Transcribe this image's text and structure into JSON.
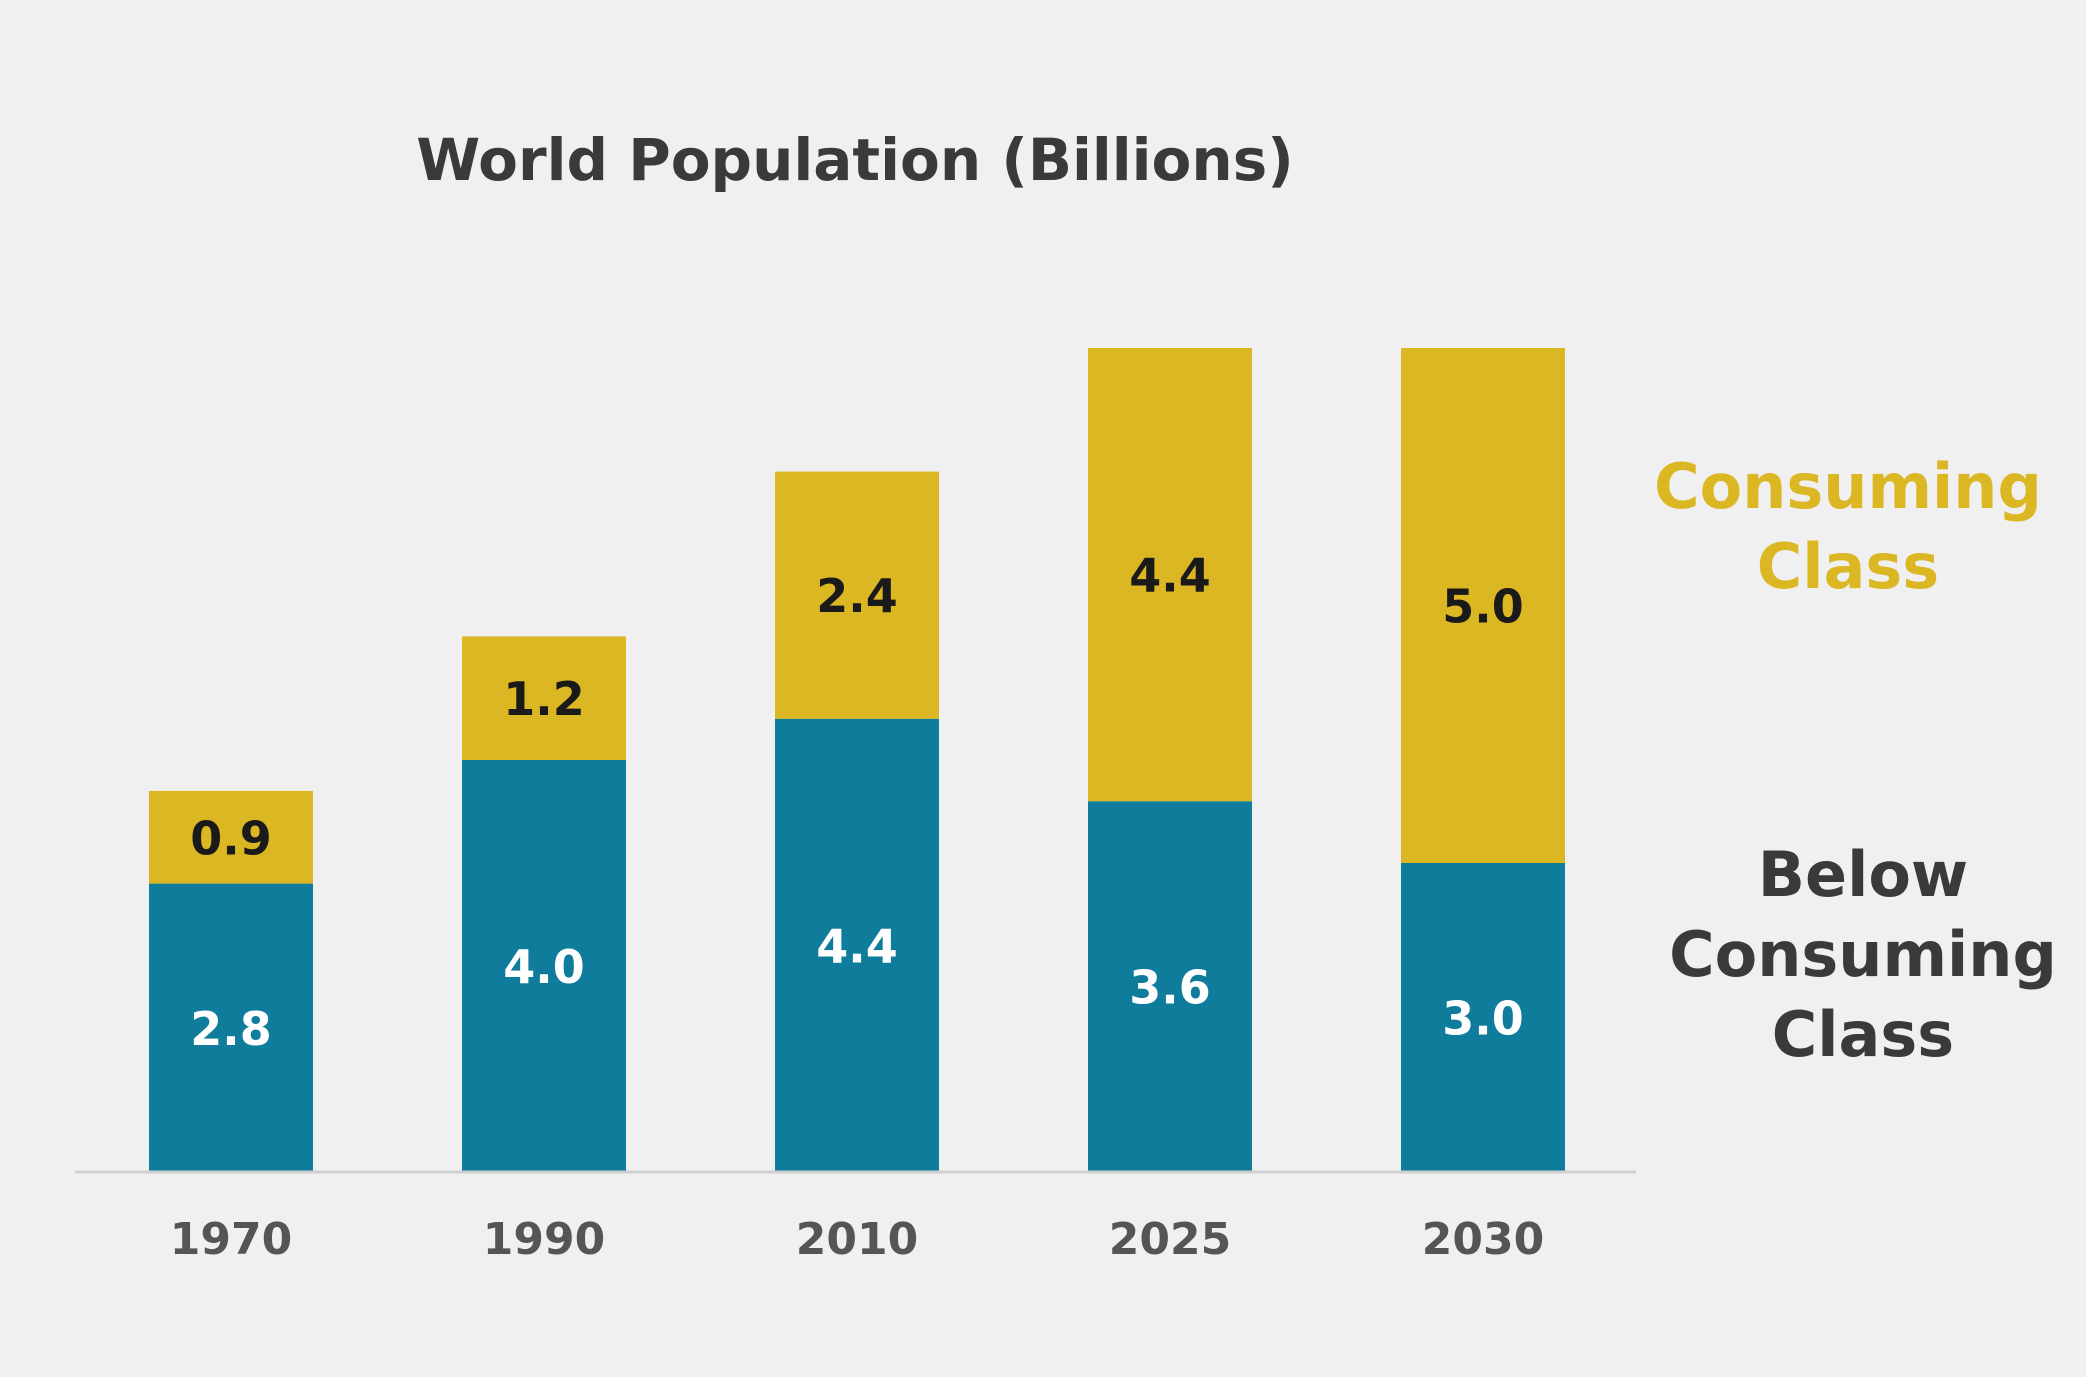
{
  "chart_data": {
    "type": "bar",
    "stacked": true,
    "title": "World Population (Billions)",
    "xlabel": "",
    "ylabel": "",
    "categories": [
      "1970",
      "1990",
      "2010",
      "2025",
      "2030"
    ],
    "series": [
      {
        "name": "Below Consuming Class",
        "values": [
          2.8,
          4.0,
          4.4,
          3.6,
          3.0
        ],
        "color": "#0e7c9a",
        "label_color": "#ffffff"
      },
      {
        "name": "Consuming Class",
        "values": [
          0.9,
          1.2,
          2.4,
          4.4,
          5.0
        ],
        "color": "#dbb724",
        "label_color": "#1a1a1a"
      }
    ],
    "ylim": [
      0,
      8
    ],
    "grid": false,
    "legend_position": "right",
    "legend_style": "direct labels beside the last bar"
  },
  "colors": {
    "background": "#f0f0f0",
    "title": "#3a3a3a",
    "axis_line": "#d0d0d0",
    "tick_label": "#555555",
    "legend_below": "#3a3a3a",
    "legend_consuming": "#dbb724"
  }
}
